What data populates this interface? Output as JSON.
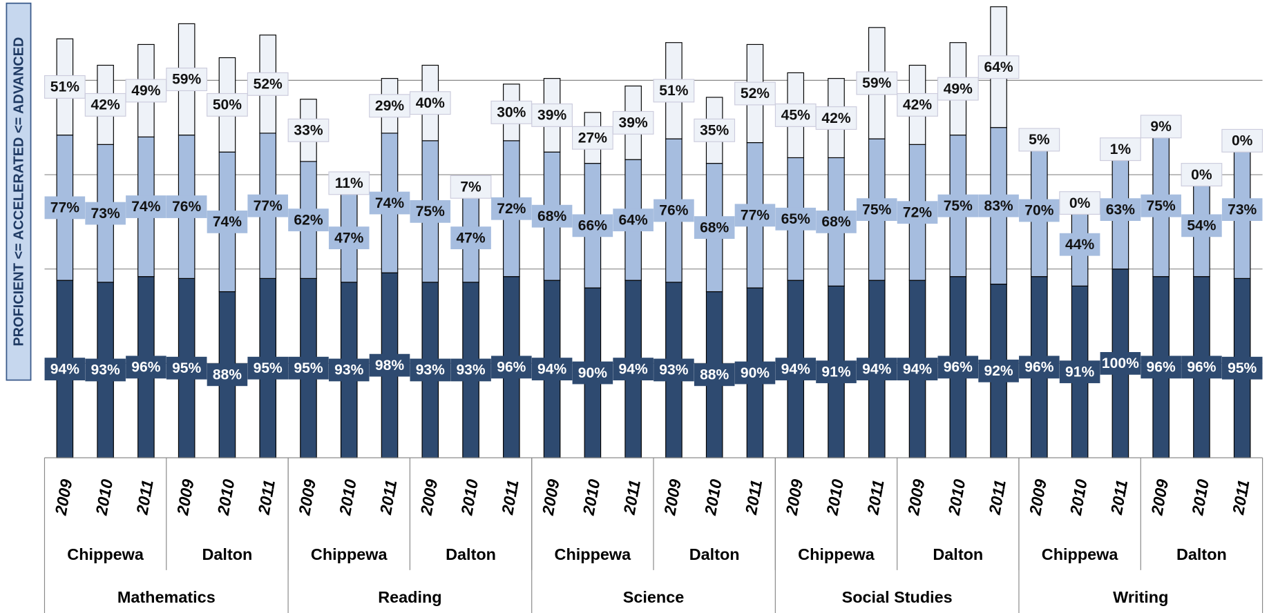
{
  "chart_data": {
    "type": "stacked_bar",
    "y_label": "PROFICIENT <= ACCELERATED <= ADVANCED",
    "categories": [
      "2009",
      "2010",
      "2011",
      "2009",
      "2010",
      "2011",
      "2009",
      "2010",
      "2011",
      "2009",
      "2010",
      "2011",
      "2009",
      "2010",
      "2011",
      "2009",
      "2010",
      "2011",
      "2009",
      "2010",
      "2011",
      "2009",
      "2010",
      "2011",
      "2009",
      "2010",
      "2011",
      "2009",
      "2010",
      "2011"
    ],
    "schools": [
      "Chippewa",
      "Dalton",
      "Chippewa",
      "Dalton",
      "Chippewa",
      "Dalton",
      "Chippewa",
      "Dalton",
      "Chippewa",
      "Dalton"
    ],
    "subjects": [
      "Mathematics",
      "Reading",
      "Science",
      "Social Studies",
      "Writing"
    ],
    "ylim": [
      0,
      240
    ],
    "yticks": [
      0,
      50,
      100,
      150,
      200
    ],
    "grid": true,
    "series": [
      {
        "color": "#2e4a70",
        "values": [
          94,
          93,
          96,
          95,
          88,
          95,
          95,
          93,
          98,
          93,
          93,
          96,
          94,
          90,
          94,
          93,
          88,
          90,
          94,
          91,
          94,
          94,
          96,
          92,
          96,
          91,
          100,
          96,
          96,
          95
        ],
        "value_labels": [
          "94%",
          "93%",
          "96%",
          "95%",
          "88%",
          "95%",
          "95%",
          "93%",
          "98%",
          "93%",
          "93%",
          "96%",
          "94%",
          "90%",
          "94%",
          "93%",
          "88%",
          "90%",
          "94%",
          "91%",
          "94%",
          "94%",
          "96%",
          "92%",
          "96%",
          "91%",
          "100%",
          "96%",
          "96%",
          "95%"
        ]
      },
      {
        "color": "#a6bddf",
        "values": [
          77,
          73,
          74,
          76,
          74,
          77,
          62,
          47,
          74,
          75,
          47,
          72,
          68,
          66,
          64,
          76,
          68,
          77,
          65,
          68,
          75,
          72,
          75,
          83,
          70,
          44,
          63,
          75,
          54,
          73
        ],
        "value_labels": [
          "77%",
          "73%",
          "74%",
          "76%",
          "74%",
          "77%",
          "62%",
          "47%",
          "74%",
          "75%",
          "47%",
          "72%",
          "68%",
          "66%",
          "64%",
          "76%",
          "68%",
          "77%",
          "65%",
          "68%",
          "75%",
          "72%",
          "75%",
          "83%",
          "70%",
          "44%",
          "63%",
          "75%",
          "54%",
          "73%"
        ]
      },
      {
        "color": "#eef2f8",
        "values": [
          51,
          42,
          49,
          59,
          50,
          52,
          33,
          11,
          29,
          40,
          7,
          30,
          39,
          27,
          39,
          51,
          35,
          52,
          45,
          42,
          59,
          42,
          49,
          64,
          5,
          0,
          1,
          9,
          0,
          0
        ],
        "value_labels": [
          "51%",
          "42%",
          "49%",
          "59%",
          "50%",
          "52%",
          "33%",
          "11%",
          "29%",
          "40%",
          "7%",
          "30%",
          "39%",
          "27%",
          "39%",
          "51%",
          "35%",
          "52%",
          "45%",
          "42%",
          "59%",
          "42%",
          "49%",
          "64%",
          "5%",
          "0%",
          "1%",
          "9%",
          "0%",
          "0%"
        ]
      }
    ]
  }
}
